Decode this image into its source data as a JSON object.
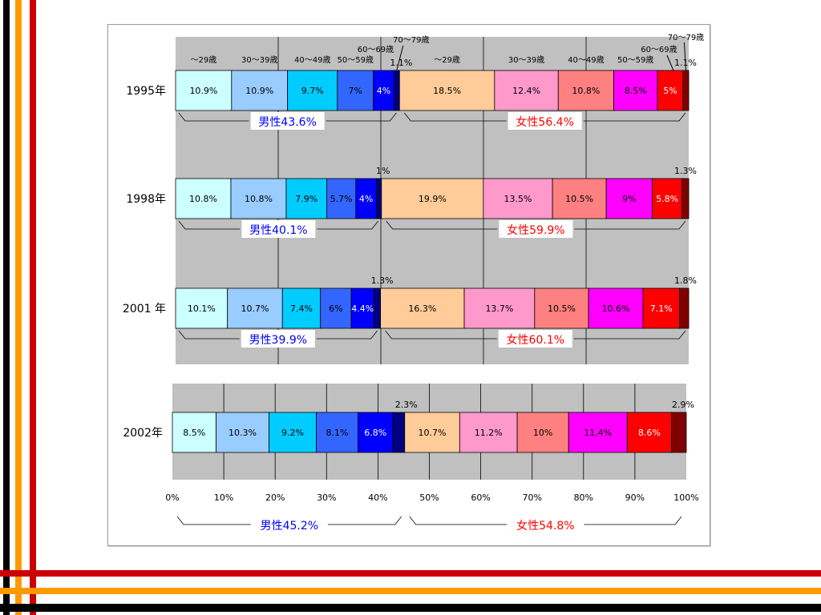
{
  "colors": {
    "m_29": "#ccffff",
    "m_30_39": "#99ccff",
    "m_40_49": "#00ccff",
    "m_50_59": "#3366ff",
    "m_60_69": "#0000ff",
    "m_70_79": "#000080",
    "f_29": "#ffcc99",
    "f_30_39": "#ff99cc",
    "f_40_49": "#ff8080",
    "f_50_59": "#ff00ff",
    "f_60_69": "#ff0000",
    "f_70_79": "#800000",
    "male_label": "#0000ff",
    "female_label": "#ff0000",
    "plot_bg": "#c0c0c0",
    "stripe_black": "#000000",
    "stripe_orange": "#ff9900",
    "stripe_red": "#cc0000"
  },
  "chart_data": {
    "type": "bar",
    "orientation": "horizontal",
    "stacked": "percent",
    "xlim": [
      0,
      100
    ],
    "xticks": [
      "0%",
      "10%",
      "20%",
      "30%",
      "40%",
      "50%",
      "60%",
      "70%",
      "80%",
      "90%",
      "100%"
    ],
    "segment_keys": [
      "m_29",
      "m_30_39",
      "m_40_49",
      "m_50_59",
      "m_60_69",
      "m_70_79",
      "f_29",
      "f_30_39",
      "f_40_49",
      "f_50_59",
      "f_60_69",
      "f_70_79"
    ],
    "category_labels": {
      "male": [
        "～29歳",
        "30～39歳",
        "40～49歳",
        "50～59歳",
        "60～69歳",
        "70～79歳"
      ],
      "female": [
        "～29歳",
        "30～39歳",
        "40～49歳",
        "50～59歳",
        "60～69歳",
        "70～79歳"
      ]
    },
    "rows": [
      {
        "year": "1995年",
        "values": [
          10.9,
          10.9,
          9.7,
          7,
          4,
          1.1,
          18.5,
          12.4,
          10.8,
          8.5,
          5,
          1.1
        ],
        "labels": [
          "10.9%",
          "10.9%",
          "9.7%",
          "7%",
          "4%",
          "",
          "18.5%",
          "12.4%",
          "10.8%",
          "8.5%",
          "5%",
          ""
        ],
        "outside_labels": [
          "1.1%",
          "1.1%"
        ],
        "male_total": "男性43.6%",
        "female_total": "女性56.4%"
      },
      {
        "year": "1998年",
        "values": [
          10.8,
          10.8,
          7.9,
          5.7,
          4,
          1,
          19.9,
          13.5,
          10.5,
          9,
          5.8,
          1.3
        ],
        "labels": [
          "10.8%",
          "10.8%",
          "7.9%",
          "5.7%",
          "4%",
          "",
          "19.9%",
          "13.5%",
          "10.5%",
          "9%",
          "5.8%",
          ""
        ],
        "outside_labels": [
          "1%",
          "1.3%"
        ],
        "male_total": "男性40.1%",
        "female_total": "女性59.9%"
      },
      {
        "year": "2001 年",
        "values": [
          10.1,
          10.7,
          7.4,
          6,
          4.4,
          1.3,
          16.3,
          13.7,
          10.5,
          10.6,
          7.1,
          1.8
        ],
        "labels": [
          "10.1%",
          "10.7%",
          "7.4%",
          "6%",
          "4.4%",
          "",
          "16.3%",
          "13.7%",
          "10.5%",
          "10.6%",
          "7.1%",
          ""
        ],
        "outside_labels": [
          "1.3%",
          "1.8%"
        ],
        "male_total": "男性39.9%",
        "female_total": "女性60.1%"
      },
      {
        "year": "2002年",
        "values": [
          8.5,
          10.3,
          9.2,
          8.1,
          6.8,
          2.3,
          10.7,
          11.2,
          10,
          11.4,
          8.6,
          2.9
        ],
        "labels": [
          "8.5%",
          "10.3%",
          "9.2%",
          "8.1%",
          "6.8%",
          "",
          "10.7%",
          "11.2%",
          "10%",
          "11.4%",
          "8.6%",
          ""
        ],
        "outside_labels": [
          "2.3%",
          "2.9%"
        ],
        "male_total": "男性45.2%",
        "female_total": "女性54.8%"
      }
    ]
  }
}
